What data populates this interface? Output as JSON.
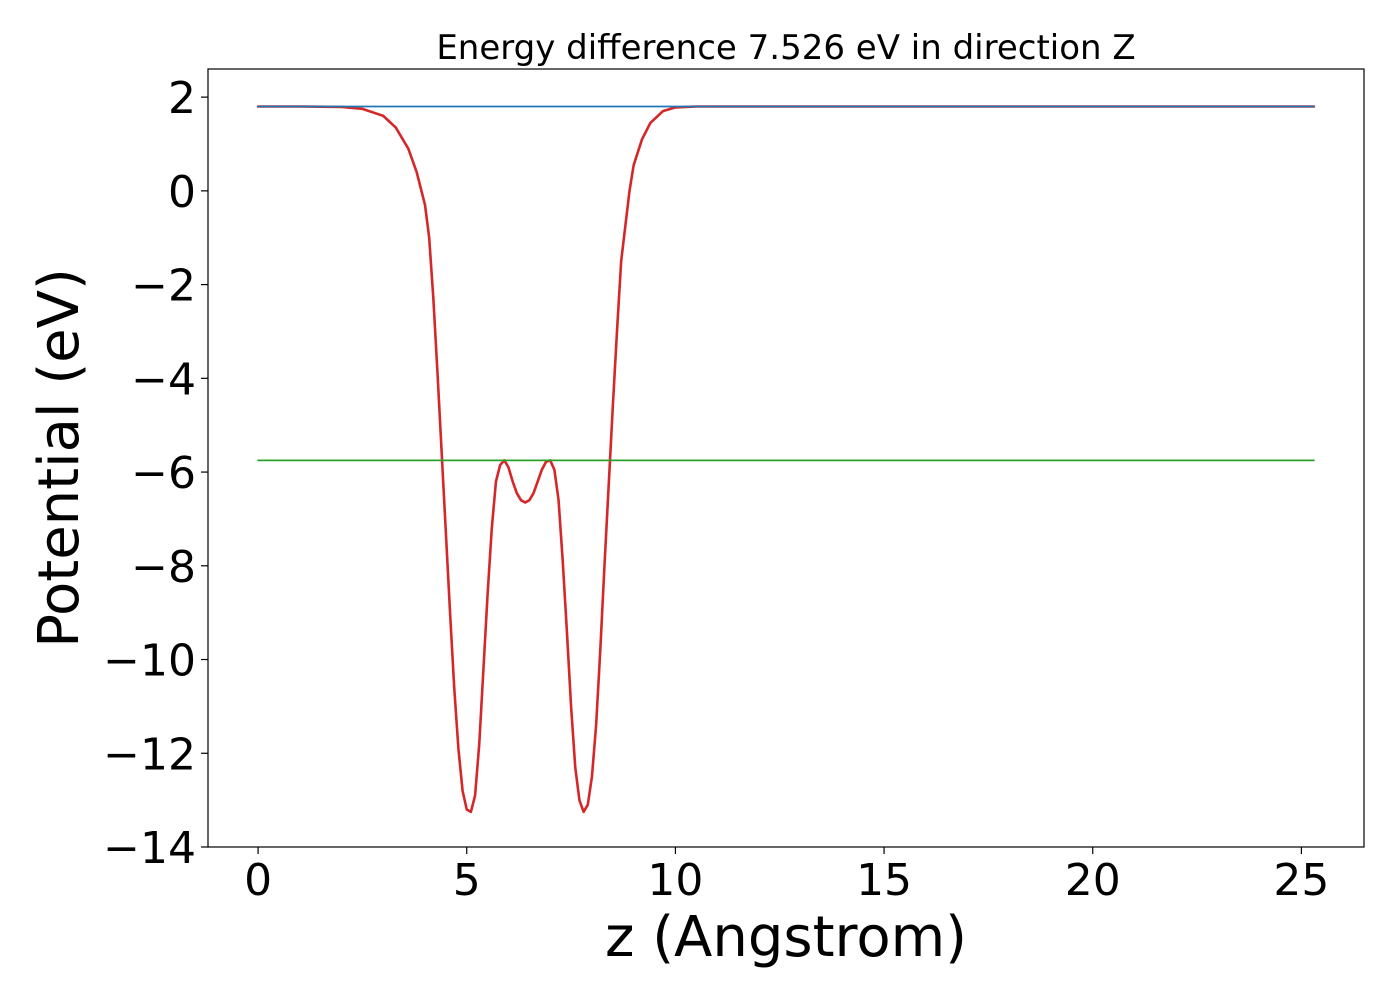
{
  "chart_data": {
    "type": "line",
    "title": "Energy difference 7.526 eV in direction Z",
    "xlabel": "z (Angstrom)",
    "ylabel": "Potential (eV)",
    "xlim": [
      -1.2,
      26.5
    ],
    "ylim": [
      -14.0,
      2.6
    ],
    "xticks": [
      0,
      5,
      10,
      15,
      20,
      25
    ],
    "yticks": [
      2,
      0,
      -2,
      -4,
      -6,
      -8,
      -10,
      -12,
      -14
    ],
    "xtick_labels": [
      "0",
      "5",
      "10",
      "15",
      "20",
      "25"
    ],
    "ytick_labels": [
      "2",
      "0",
      "−2",
      "−4",
      "−6",
      "−8",
      "−10",
      "−12",
      "−14"
    ],
    "grid": false,
    "series": [
      {
        "color": "#d62728",
        "style": "solid",
        "x": [
          0,
          1,
          2,
          2.5,
          3,
          3.3,
          3.6,
          3.8,
          4.0,
          4.1,
          4.2,
          4.3,
          4.4,
          4.5,
          4.6,
          4.7,
          4.8,
          4.9,
          5.0,
          5.1,
          5.2,
          5.3,
          5.4,
          5.5,
          5.6,
          5.7,
          5.8,
          5.9,
          6.0,
          6.1,
          6.2,
          6.3,
          6.4,
          6.5,
          6.6,
          6.7,
          6.8,
          6.9,
          7.0,
          7.1,
          7.2,
          7.3,
          7.4,
          7.5,
          7.6,
          7.7,
          7.8,
          7.9,
          8.0,
          8.1,
          8.2,
          8.3,
          8.4,
          8.5,
          8.6,
          8.7,
          8.9,
          9.0,
          9.2,
          9.4,
          9.7,
          10.0,
          10.5,
          11.0,
          12.0,
          15.0,
          20.0,
          25.3
        ],
        "y": [
          1.8,
          1.8,
          1.79,
          1.75,
          1.6,
          1.35,
          0.9,
          0.4,
          -0.3,
          -1.0,
          -2.3,
          -3.9,
          -5.6,
          -7.3,
          -9.0,
          -10.6,
          -11.9,
          -12.8,
          -13.2,
          -13.25,
          -12.9,
          -11.8,
          -10.2,
          -8.6,
          -7.2,
          -6.2,
          -5.85,
          -5.75,
          -5.9,
          -6.2,
          -6.45,
          -6.6,
          -6.65,
          -6.6,
          -6.45,
          -6.2,
          -5.95,
          -5.78,
          -5.75,
          -5.95,
          -6.6,
          -7.9,
          -9.4,
          -11.0,
          -12.3,
          -13.0,
          -13.25,
          -13.1,
          -12.5,
          -11.4,
          -9.8,
          -8.0,
          -6.3,
          -4.6,
          -3.0,
          -1.5,
          0.0,
          0.55,
          1.1,
          1.45,
          1.7,
          1.78,
          1.8,
          1.8,
          1.8,
          1.8,
          1.8,
          1.8
        ]
      },
      {
        "color": "#1f77b4",
        "style": "solid",
        "x": [
          0,
          25.3
        ],
        "y": [
          1.8,
          1.8
        ]
      },
      {
        "color": "#2ca02c",
        "style": "solid",
        "x": [
          0,
          25.3
        ],
        "y": [
          -5.75,
          -5.75
        ]
      }
    ]
  }
}
